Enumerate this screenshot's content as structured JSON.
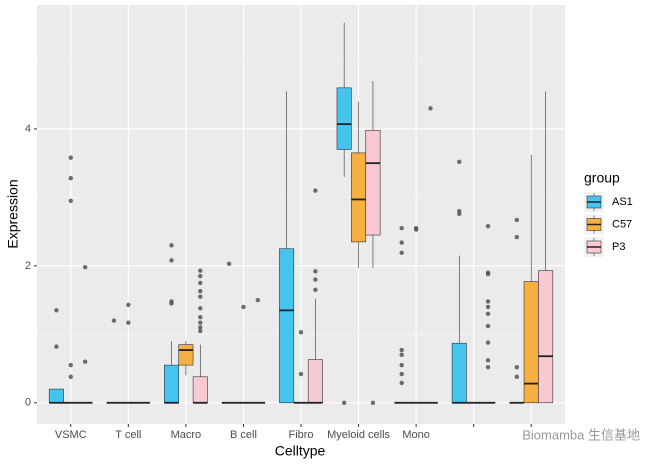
{
  "chart_data": {
    "type": "box",
    "x_label": "Celltype",
    "y_label": "Expression",
    "categories": [
      "VSMC",
      "T cell",
      "Macro",
      "B cell",
      "Fibro",
      "Myeloid cells",
      "Mono",
      null,
      null
    ],
    "ylim": [
      -0.31,
      5.81
    ],
    "yticks": [
      0,
      2,
      4
    ],
    "y_minor_ticks": [
      1,
      3,
      5
    ],
    "grid": true,
    "legend_title": "group",
    "legend_position": "right",
    "series": [
      {
        "name": "AS1",
        "color": "#45c4f0",
        "min": [
          0,
          0,
          0,
          0,
          0,
          3.3,
          0,
          0,
          0
        ],
        "q1": [
          0,
          0,
          0,
          0,
          0,
          3.7,
          0,
          0,
          0
        ],
        "median": [
          0,
          0,
          0,
          0,
          1.35,
          4.07,
          0,
          0,
          0
        ],
        "q3": [
          0.2,
          0,
          0.55,
          0,
          2.25,
          4.6,
          0,
          0.87,
          0
        ],
        "max": [
          0.2,
          0,
          0.9,
          0,
          4.55,
          5.55,
          0,
          2.15,
          0
        ],
        "outliers": [
          [
            1.35,
            0.82
          ],
          [
            1.2
          ],
          [
            2.3,
            2.08,
            1.48,
            1.45
          ],
          [
            2.03
          ],
          [],
          [
            0
          ],
          [
            2.55,
            2.34,
            2.19,
            0.77,
            0.7,
            0.55,
            0.42,
            0.29
          ],
          [
            3.52,
            2.8,
            2.76
          ],
          [
            2.67,
            2.42,
            0.52,
            0.38
          ]
        ]
      },
      {
        "name": "C57",
        "color": "#f5b041",
        "min": [
          0,
          0,
          0.4,
          0,
          0,
          1.97,
          0,
          0,
          0
        ],
        "q1": [
          0,
          0,
          0.55,
          0,
          0,
          2.35,
          0,
          0,
          0
        ],
        "median": [
          0,
          0,
          0.77,
          0,
          0,
          2.97,
          0,
          0,
          0.28
        ],
        "q3": [
          0,
          0,
          0.85,
          0,
          0,
          3.65,
          0,
          0,
          1.77
        ],
        "max": [
          0,
          0,
          0.9,
          0,
          0,
          4.4,
          0,
          0,
          3.62
        ],
        "outliers": [
          [
            3.58,
            3.28,
            2.95,
            0.55,
            0.38
          ],
          [
            1.43,
            1.17
          ],
          [],
          [
            1.4
          ],
          [
            1.03,
            0.42
          ],
          [],
          [
            2.55,
            2.53
          ],
          [],
          []
        ]
      },
      {
        "name": "P3",
        "color": "#f9c9d2",
        "min": [
          0,
          0,
          0,
          0,
          0,
          1.97,
          0,
          0,
          0
        ],
        "q1": [
          0,
          0,
          0,
          0,
          0,
          2.45,
          0,
          0,
          0
        ],
        "median": [
          0,
          0,
          0,
          0,
          0,
          3.5,
          0,
          0,
          0.68
        ],
        "q3": [
          0,
          0,
          0.38,
          0,
          0.63,
          3.98,
          0,
          0,
          1.93
        ],
        "max": [
          0,
          0,
          0.85,
          0,
          1.52,
          4.7,
          0,
          0,
          4.55
        ],
        "outliers": [
          [
            1.98,
            0.6
          ],
          [],
          [
            1.93,
            1.85,
            1.75,
            1.63,
            1.55,
            1.38,
            1.25,
            1.17,
            1.1,
            1.05
          ],
          [
            1.5
          ],
          [
            3.1,
            1.92,
            1.8,
            1.65
          ],
          [
            0
          ],
          [
            4.3
          ],
          [
            2.58,
            1.9,
            1.88,
            1.48,
            1.4,
            1.3,
            1.12,
            0.88,
            0.62,
            0.52
          ],
          []
        ]
      }
    ],
    "watermark": "Biomamba 生信基地"
  }
}
